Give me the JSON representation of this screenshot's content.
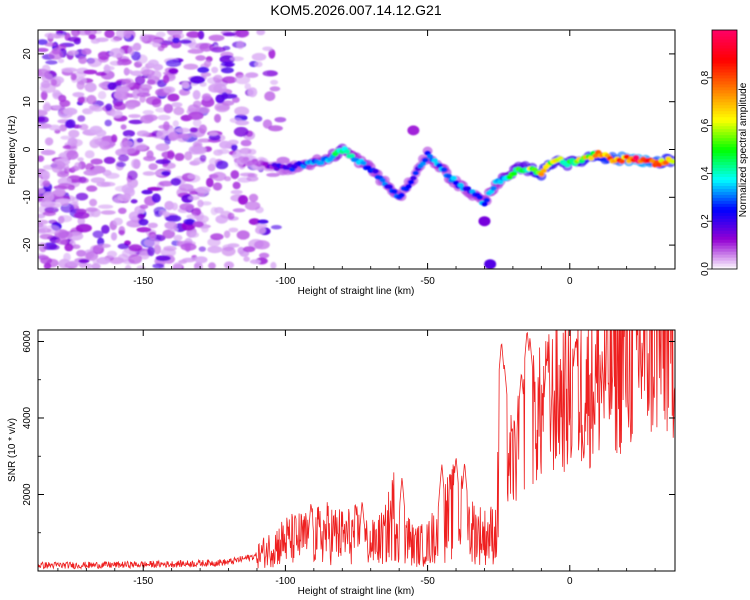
{
  "title": "KOM5.2026.007.14.12.G21",
  "chart_data": [
    {
      "type": "heatmap",
      "title": "KOM5.2026.007.14.12.G21",
      "xlabel": "Height of straight line (km)",
      "ylabel": "Frequency (Hz)",
      "xlim": [
        -187,
        37
      ],
      "ylim": [
        -25,
        25
      ],
      "x_ticks": [
        -150,
        -100,
        -50,
        0
      ],
      "x_tick_labels": [
        "-150",
        "-100",
        "-50",
        "0"
      ],
      "y_ticks": [
        -20,
        -10,
        0,
        10,
        20
      ],
      "y_tick_labels": [
        "-20",
        "-10",
        "0",
        "10",
        "20"
      ],
      "colorbar": {
        "label": "Normalized spectral amplitude",
        "range": [
          0,
          1
        ],
        "ticks": [
          0.0,
          0.2,
          0.4,
          0.6,
          0.8
        ],
        "tick_labels": [
          "0.0",
          "0.2",
          "0.4",
          "0.6",
          "0.8"
        ],
        "colors": [
          "#ffffff",
          "#9400d3",
          "#0000ff",
          "#00ffff",
          "#00ff00",
          "#ffff00",
          "#ff7f00",
          "#ff0000",
          "#ff0066"
        ]
      },
      "ridge": {
        "x": [
          -117,
          -110,
          -100,
          -92,
          -85,
          -80,
          -75,
          -70,
          -65,
          -60,
          -55,
          -50,
          -45,
          -40,
          -35,
          -30,
          -26,
          -22,
          -18,
          -14,
          -10,
          -5,
          0,
          5,
          10,
          15,
          20,
          25,
          30,
          37
        ],
        "y": [
          -2,
          -3,
          -4,
          -3,
          -2,
          0,
          -2,
          -4,
          -7,
          -10,
          -6,
          -1,
          -4,
          -7,
          -9,
          -11,
          -7,
          -6,
          -4,
          -4,
          -5,
          -2,
          -3,
          -2,
          -1,
          -2,
          -2,
          -2,
          -3,
          -2
        ],
        "amplitude": [
          0.05,
          0.08,
          0.22,
          0.3,
          0.38,
          0.45,
          0.35,
          0.3,
          0.28,
          0.3,
          0.25,
          0.3,
          0.35,
          0.32,
          0.3,
          0.32,
          0.35,
          0.45,
          0.5,
          0.55,
          0.7,
          0.6,
          0.55,
          0.65,
          0.7,
          0.8,
          0.9,
          0.95,
          0.85,
          0.6
        ]
      },
      "secondary_features": [
        {
          "x": -55,
          "y": 4,
          "amplitude": 0.12
        },
        {
          "x": -28,
          "y": -24,
          "amplitude": 0.18
        },
        {
          "x": -30,
          "y": -15,
          "amplitude": 0.15
        }
      ],
      "noise_region": {
        "x_range": [
          -187,
          -110
        ],
        "y_range": [
          -25,
          25
        ],
        "amplitude_range": [
          0.03,
          0.2
        ]
      }
    },
    {
      "type": "line",
      "xlabel": "Height of straight line (km)",
      "ylabel": "SNR (10 * v/v)",
      "xlim": [
        -187,
        37
      ],
      "ylim": [
        0,
        6300
      ],
      "x_ticks": [
        -150,
        -100,
        -50,
        0
      ],
      "x_tick_labels": [
        "-150",
        "-100",
        "-50",
        "0"
      ],
      "y_ticks": [
        2000,
        4000,
        6000
      ],
      "y_tick_labels": [
        "2000",
        "4000",
        "6000"
      ],
      "color": "#ee2020",
      "series": [
        {
          "name": "SNR",
          "x": [
            -187,
            -175,
            -160,
            -150,
            -140,
            -130,
            -120,
            -110,
            -105,
            -100,
            -95,
            -90,
            -85,
            -80,
            -75,
            -70,
            -65,
            -62,
            -58,
            -55,
            -50,
            -45,
            -40,
            -35,
            -30,
            -26,
            -24,
            -22,
            -20,
            -18,
            -16,
            -14,
            -12,
            -10,
            -8,
            -5,
            0,
            5,
            10,
            15,
            20,
            25,
            30,
            37
          ],
          "y": [
            150,
            150,
            160,
            170,
            180,
            200,
            230,
            400,
            600,
            800,
            850,
            900,
            1000,
            900,
            950,
            700,
            900,
            1500,
            1000,
            650,
            700,
            1200,
            1600,
            1100,
            900,
            1000,
            3300,
            3000,
            2800,
            3200,
            3700,
            3900,
            4000,
            4100,
            4300,
            4500,
            4600,
            4700,
            5000,
            5300,
            5500,
            5800,
            5950,
            6100
          ],
          "spikes": [
            {
              "x": -91,
              "y": 1800
            },
            {
              "x": -73,
              "y": 1850
            },
            {
              "x": -59,
              "y": 2450
            },
            {
              "x": -45,
              "y": 2800
            },
            {
              "x": -40,
              "y": 3000
            },
            {
              "x": -37,
              "y": 2850
            },
            {
              "x": -24,
              "y": 6000
            },
            {
              "x": -23,
              "y": 5400
            },
            {
              "x": -17,
              "y": 5200
            },
            {
              "x": -15,
              "y": 6300
            },
            {
              "x": -14,
              "y": 6100
            },
            {
              "x": -8,
              "y": 5600
            },
            {
              "x": 2,
              "y": 6000
            }
          ]
        }
      ]
    }
  ]
}
